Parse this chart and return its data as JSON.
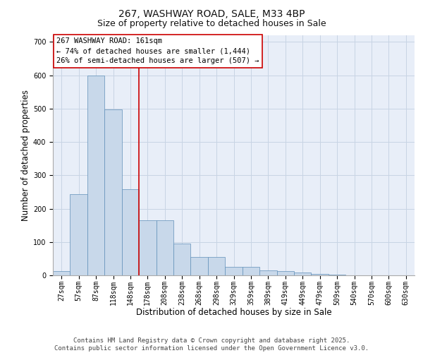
{
  "title_line1": "267, WASHWAY ROAD, SALE, M33 4BP",
  "title_line2": "Size of property relative to detached houses in Sale",
  "xlabel": "Distribution of detached houses by size in Sale",
  "ylabel": "Number of detached properties",
  "categories": [
    "27sqm",
    "57sqm",
    "87sqm",
    "118sqm",
    "148sqm",
    "178sqm",
    "208sqm",
    "238sqm",
    "268sqm",
    "298sqm",
    "329sqm",
    "359sqm",
    "389sqm",
    "419sqm",
    "449sqm",
    "479sqm",
    "509sqm",
    "540sqm",
    "570sqm",
    "600sqm",
    "630sqm"
  ],
  "values": [
    13,
    243,
    600,
    497,
    258,
    165,
    165,
    95,
    55,
    55,
    25,
    25,
    15,
    12,
    8,
    5,
    3,
    1,
    1,
    0,
    0
  ],
  "bar_color": "#c8d8ea",
  "bar_edge_color": "#6090b8",
  "vline_position": 4.5,
  "vline_color": "#cc0000",
  "annotation_text": "267 WASHWAY ROAD: 161sqm\n← 74% of detached houses are smaller (1,444)\n26% of semi-detached houses are larger (507) →",
  "annotation_box_facecolor": "#ffffff",
  "annotation_box_edgecolor": "#cc0000",
  "grid_color": "#c8d4e4",
  "ax_facecolor": "#e8eef8",
  "fig_facecolor": "#ffffff",
  "ylim": [
    0,
    720
  ],
  "yticks": [
    0,
    100,
    200,
    300,
    400,
    500,
    600,
    700
  ],
  "footer_text": "Contains HM Land Registry data © Crown copyright and database right 2025.\nContains public sector information licensed under the Open Government Licence v3.0.",
  "title_fontsize": 10,
  "subtitle_fontsize": 9,
  "xlabel_fontsize": 8.5,
  "ylabel_fontsize": 8.5,
  "tick_fontsize": 7,
  "annot_fontsize": 7.5,
  "footer_fontsize": 6.5
}
